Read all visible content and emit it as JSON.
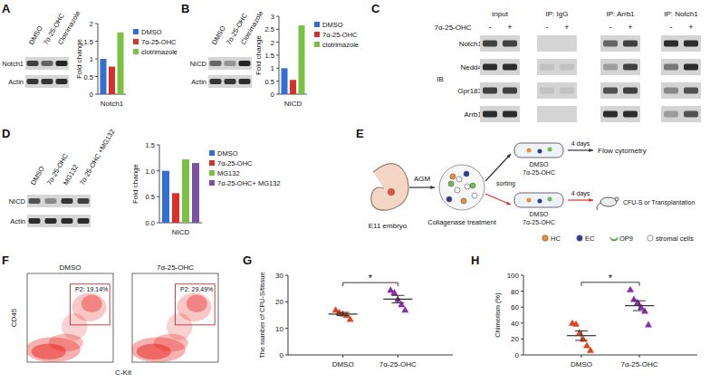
{
  "panel_labels": [
    "A",
    "B",
    "C",
    "D",
    "E",
    "F",
    "G",
    "H"
  ],
  "chart_data": [
    {
      "type": "bar",
      "xlabel": "Notch1",
      "ylabel": "Fold change",
      "categories": [
        "DMSO",
        "7α-25-OHC",
        "clotrimazole"
      ],
      "values": [
        1,
        0.78,
        1.75
      ],
      "colors": [
        "#2f6fd6",
        "#d9302c",
        "#7cc242"
      ],
      "ylim": [
        0,
        2
      ],
      "yticks": [
        0,
        0.5,
        1,
        1.5,
        2
      ],
      "legend": "right",
      "tick_labels": "y"
    },
    {
      "type": "bar",
      "xlabel": "NICD",
      "ylabel": "Fold change",
      "categories": [
        "DMSO",
        "7α-25-OHC",
        "clotrimazole"
      ],
      "values": [
        1,
        0.55,
        2.65
      ],
      "colors": [
        "#2f6fd6",
        "#d9302c",
        "#7cc242"
      ],
      "ylim": [
        0,
        3
      ],
      "yticks": [
        0,
        0.5,
        1,
        1.5,
        2,
        2.5,
        3
      ],
      "legend": "right",
      "tick_labels": "y"
    },
    {
      "type": "bar",
      "xlabel": "NICD",
      "ylabel": "Fold change",
      "categories": [
        "DMSO",
        "7α-25-OHC",
        "MG132",
        "7α-25-OHC+ MG132"
      ],
      "values": [
        1,
        0.57,
        1.22,
        1.15
      ],
      "colors": [
        "#2f6fd6",
        "#d9302c",
        "#7cc242",
        "#7b52a3"
      ],
      "ylim": [
        0,
        1.5
      ],
      "yticks": [
        {
          "value": 0,
          "label": "0.0"
        },
        0.5,
        {
          "value": 1,
          "label": "1.0"
        },
        1.5
      ],
      "legend": "right",
      "tick_labels": "y"
    },
    {
      "type": "dot",
      "ylabel": "The number of CFU-S/tissue",
      "categories": [
        "DMSO",
        "7α-25-OHC"
      ],
      "values": [
        [
          17,
          16,
          15.5,
          15,
          13.5
        ],
        [
          24.5,
          23.5,
          21,
          19,
          17
        ]
      ],
      "means": [
        15.4,
        21
      ],
      "errors": [
        0.6,
        1.4
      ],
      "colors": [
        "#e2441f",
        "#8e2bb0"
      ],
      "marker": "triangle",
      "ylim": [
        0,
        30
      ],
      "yticks": [
        0,
        10,
        20,
        30
      ],
      "annotations": [
        {
          "text": "*",
          "between": [
            "DMSO",
            "7α-25-OHC"
          ]
        }
      ]
    },
    {
      "type": "dot",
      "ylabel": "Chimerism (%)",
      "categories": [
        "DMSO",
        "7α-25-OHC"
      ],
      "values": [
        [
          40,
          39,
          28,
          20,
          12,
          6
        ],
        [
          82,
          70,
          66,
          60,
          55,
          38
        ]
      ],
      "means": [
        24.2,
        61.8
      ],
      "errors": [
        5.9,
        6.2
      ],
      "colors": [
        "#e2441f",
        "#8e2bb0"
      ],
      "marker": "triangle",
      "ylim": [
        0,
        100
      ],
      "yticks": [
        0,
        20,
        40,
        60,
        80,
        100
      ],
      "annotations": [
        {
          "text": "*",
          "between": [
            "DMSO",
            "7α-25-OHC"
          ]
        }
      ]
    }
  ],
  "blots": {
    "A": {
      "lanes": [
        "DMSO",
        "7α-25-OHC",
        "Clotrimazole"
      ],
      "rows": [
        {
          "label": "Notch1",
          "bands": [
            0.8,
            0.6,
            0.95
          ]
        },
        {
          "label": "Actin",
          "bands": [
            0.85,
            0.85,
            0.9
          ]
        }
      ]
    },
    "B": {
      "lanes": [
        "DMSO",
        "7α-25-OHC",
        "Clotrimazole"
      ],
      "rows": [
        {
          "label": "NICD",
          "bands": [
            0.6,
            0.35,
            0.95
          ]
        },
        {
          "label": "Actin",
          "bands": [
            0.85,
            0.85,
            0.9
          ]
        }
      ]
    },
    "C": {
      "treatment": "7α-25-OHC",
      "groups": [
        "Input",
        "IP: IgG",
        "IP: Arrb1",
        "IP: Notch1"
      ],
      "signs": [
        "-",
        "+"
      ],
      "ib": "IB",
      "rows": [
        {
          "label": "Notch1",
          "bands": [
            0.8,
            0.8,
            0,
            0,
            0.6,
            0.8,
            0.9,
            0.9
          ]
        },
        {
          "label": "Nedd4",
          "bands": [
            0.9,
            0.9,
            0.1,
            0.1,
            0.3,
            0.8,
            0.5,
            0.9
          ]
        },
        {
          "label": "Gpr183",
          "bands": [
            0.8,
            0.8,
            0.1,
            0.1,
            0.7,
            0.8,
            0.4,
            0.7
          ]
        },
        {
          "label": "Arrb1",
          "bands": [
            0.9,
            0.9,
            0,
            0,
            0.9,
            0.9,
            0.3,
            0.7
          ]
        }
      ]
    },
    "D": {
      "lanes": [
        "DMSO",
        "7α-25-OHC",
        "MG132",
        "7α-25-OHC +MG132"
      ],
      "rows": [
        {
          "label": "NICD",
          "bands": [
            0.7,
            0.4,
            0.85,
            0.8
          ]
        },
        {
          "label": "Actin",
          "bands": [
            0.9,
            0.9,
            0.9,
            0.9
          ]
        }
      ]
    }
  },
  "diagram": {
    "embryo": "E11 embryo",
    "tissue": "AGM",
    "treatment": "Collagenase treatment",
    "sorting": "sorting",
    "dishes": [
      [
        "DMSO",
        "7α-25-OHC"
      ],
      [
        "DMSO",
        "7α-25-OHC"
      ]
    ],
    "durations": [
      "4 days",
      "4 days"
    ],
    "outputs": [
      "Flow cytometry",
      "CFU-S or Transplantation"
    ],
    "legend": [
      {
        "label": "HC",
        "color": "#f28a30"
      },
      {
        "label": "EC",
        "color": "#2a3c9e"
      },
      {
        "label": "OP9",
        "color": "#6cc04a"
      },
      {
        "label": "stromal cells",
        "color": "#ffffff"
      }
    ]
  },
  "flow": {
    "xlabel": "C-Kit",
    "ylabel": "CD45",
    "plots": [
      {
        "title": "DMSO",
        "gate": "P2: 19.14%"
      },
      {
        "title": "7α-25-OHC",
        "gate": "P2: 29.49%"
      }
    ]
  }
}
